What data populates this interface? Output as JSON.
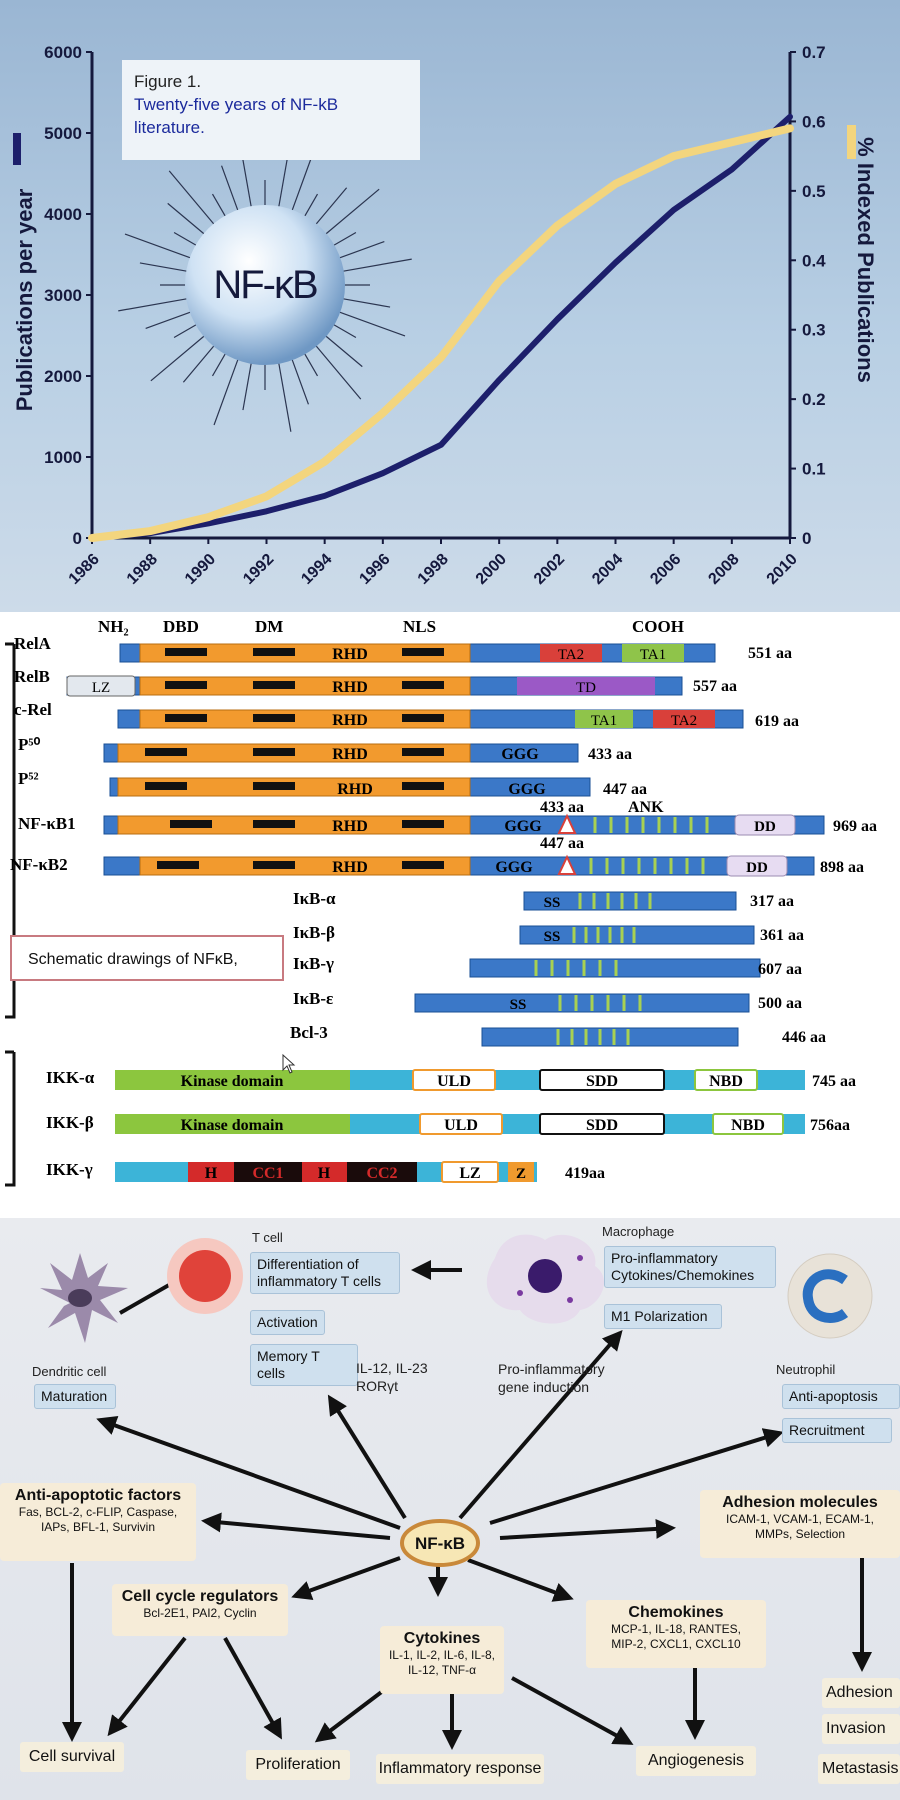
{
  "figure1": {
    "caption_line1": "Figure 1.",
    "caption_line2": "Twenty-five years of NF-kB",
    "caption_line3": "literature.",
    "sphere_label": "NF-κB",
    "colors": {
      "publications": "#1d1f6b",
      "indexed": "#f3d57e"
    },
    "chart_data": {
      "type": "line",
      "ylabel": "Publications per year",
      "y2label": "% Indexed Publications",
      "ylim": [
        0,
        6000
      ],
      "y2lim": [
        0,
        0.7
      ],
      "yticks": [
        "0",
        "1000",
        "2000",
        "3000",
        "4000",
        "5000",
        "6000"
      ],
      "y2ticks": [
        "0",
        "0.1",
        "0.2",
        "0.3",
        "0.4",
        "0.5",
        "0.6",
        "0.7"
      ],
      "xticks": [
        "1986",
        "1988",
        "1990",
        "1992",
        "1994",
        "1996",
        "1998",
        "2000",
        "2002",
        "2004",
        "2006",
        "2008",
        "2010"
      ],
      "series": [
        {
          "axis": "left",
          "x": [
            1986,
            1988,
            1990,
            1992,
            1994,
            1996,
            1998,
            2000,
            2002,
            2004,
            2006,
            2008,
            2010
          ],
          "values": [
            0,
            60,
            180,
            330,
            520,
            800,
            1150,
            1950,
            2700,
            3400,
            4050,
            4550,
            5200
          ]
        },
        {
          "axis": "right",
          "x": [
            1986,
            1988,
            1990,
            1992,
            1994,
            1996,
            1998,
            2000,
            2002,
            2004,
            2006,
            2008,
            2010
          ],
          "values": [
            0,
            0.01,
            0.03,
            0.06,
            0.11,
            0.18,
            0.26,
            0.37,
            0.45,
            0.51,
            0.55,
            0.57,
            0.59
          ]
        }
      ]
    }
  },
  "domains": {
    "headers": {
      "nh2": "NH₂",
      "dbd": "DBD",
      "dm": "DM",
      "nls": "NLS",
      "cooh": "COOH",
      "ank": "ANK"
    },
    "rhd": "RHD",
    "popup_text": "Schematic drawings of NFκB,",
    "rows": [
      {
        "name": "RelA",
        "aa": "551 aa"
      },
      {
        "name": "RelB",
        "aa": "557 aa"
      },
      {
        "name": "c-Rel",
        "aa": "619 aa"
      },
      {
        "name": "P⁵⁰",
        "aa": "433 aa"
      },
      {
        "name": "P⁵²",
        "aa": "447 aa"
      },
      {
        "name": "NF-κB1",
        "aa": "969 aa"
      },
      {
        "name": "NF-κB2",
        "aa": "898 aa"
      },
      {
        "name": "IκB-α",
        "aa": "317 aa"
      },
      {
        "name": "IκB-β",
        "aa": "361 aa"
      },
      {
        "name": "IκB-γ",
        "aa": "607 aa"
      },
      {
        "name": "IκB-ε",
        "aa": "500 aa"
      },
      {
        "name": "Bcl-3",
        "aa": "446 aa"
      },
      {
        "name": "IKK-α",
        "aa": "745 aa"
      },
      {
        "name": "IKK-β",
        "aa": "756aa"
      },
      {
        "name": "IKK-γ",
        "aa": "419aa"
      }
    ],
    "labels": {
      "ta1": "TA1",
      "ta2": "TA2",
      "td": "TD",
      "lz": "LZ",
      "ggg": "GGG",
      "dd": "DD",
      "ss": "SS",
      "kinase": "Kinase domain",
      "uld": "ULD",
      "sdd": "SDD",
      "nbd": "NBD",
      "h": "H",
      "cc1": "CC1",
      "cc2": "CC2",
      "z": "Z",
      "nfkb1_mark": "433 aa",
      "nfkb2_mark": "447 aa"
    }
  },
  "network": {
    "center": "NF-κB",
    "tcell": {
      "title": "T cell",
      "b1": "Differentiation of inflammatory T cells",
      "b2": "Activation",
      "b3": "Memory T cells"
    },
    "macrophage": {
      "title": "Macrophage",
      "b1": "Pro-inflammatory Cytokines/Chemokines",
      "b2": "M1 Polarization"
    },
    "dendritic": {
      "title": "Dendritic cell",
      "b1": "Maturation"
    },
    "neutrophil": {
      "title": "Neutrophil",
      "b1": "Anti-apoptosis",
      "b2": "Recruitment"
    },
    "il12": "IL-12, IL-23",
    "rorgt": "RORγt",
    "proinf": "Pro-inflammatory gene induction",
    "anti_apop": {
      "title": "Anti-apoptotic factors",
      "d1": "Fas, BCL-2, c-FLIP, Caspase,",
      "d2": "IAPs, BFL-1, Survivin"
    },
    "adhesion": {
      "title": "Adhesion molecules",
      "d1": "ICAM-1, VCAM-1, ECAM-1,",
      "d2": "MMPs, Selection"
    },
    "cellcycle": {
      "title": "Cell cycle regulators",
      "d1": "Bcl-2E1, PAI2, Cyclin"
    },
    "cytokines": {
      "title": "Cytokines",
      "d1": "IL-1, IL-2, IL-6, IL-8,",
      "d2": "IL-12, TNF-α"
    },
    "chemokines": {
      "title": "Chemokines",
      "d1": "MCP-1, IL-18, RANTES,",
      "d2": "MIP-2, CXCL1, CXCL10"
    },
    "outcomes": {
      "survival": "Cell survival",
      "prolif": "Proliferation",
      "inflam": "Inflammatory response",
      "angio": "Angiogenesis",
      "adhesion": "Adhesion",
      "invasion": "Invasion",
      "metastasis": "Metastasis"
    }
  }
}
